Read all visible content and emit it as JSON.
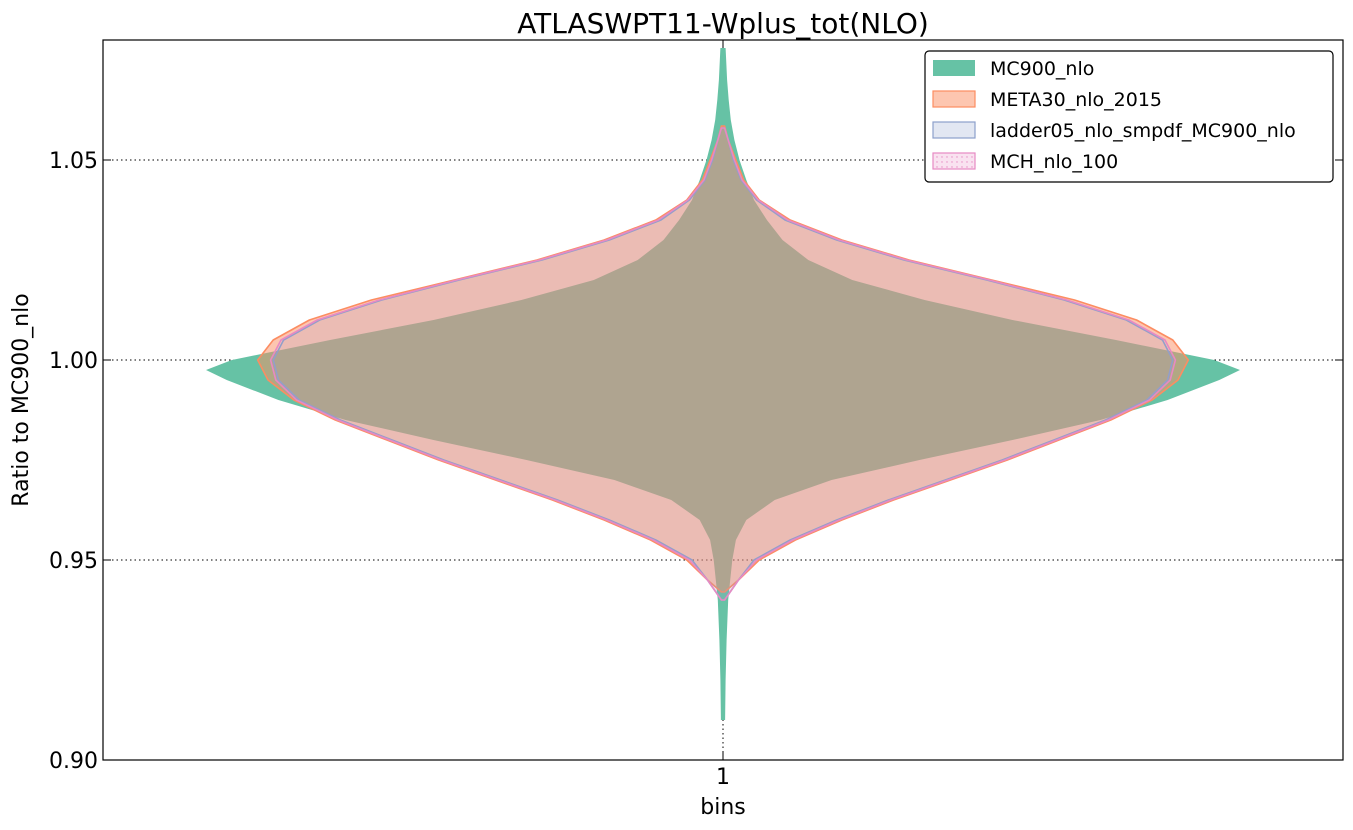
{
  "chart_data": {
    "type": "violin",
    "title": "ATLASWPT11-Wplus_tot(NLO)",
    "xlabel": "bins",
    "ylabel": "Ratio to MC900_nlo",
    "categories": [
      "1"
    ],
    "ylim": [
      0.9,
      1.08
    ],
    "yticks": [
      "0.90",
      "0.95",
      "1.00",
      "1.05"
    ],
    "grid": true,
    "legend_position": "top-right",
    "series": [
      {
        "name": "MC900_nlo",
        "color": "#66c2a5",
        "style": "filled",
        "profile": [
          [
            0.91,
            0.004
          ],
          [
            0.92,
            0.005
          ],
          [
            0.93,
            0.007
          ],
          [
            0.94,
            0.01
          ],
          [
            0.945,
            0.014
          ],
          [
            0.95,
            0.018
          ],
          [
            0.955,
            0.025
          ],
          [
            0.96,
            0.045
          ],
          [
            0.965,
            0.1
          ],
          [
            0.97,
            0.21
          ],
          [
            0.975,
            0.38
          ],
          [
            0.98,
            0.56
          ],
          [
            0.985,
            0.73
          ],
          [
            0.99,
            0.86
          ],
          [
            0.995,
            0.96
          ],
          [
            0.9975,
            1.0
          ],
          [
            1.0,
            0.95
          ],
          [
            1.005,
            0.76
          ],
          [
            1.01,
            0.56
          ],
          [
            1.015,
            0.39
          ],
          [
            1.02,
            0.25
          ],
          [
            1.025,
            0.165
          ],
          [
            1.03,
            0.115
          ],
          [
            1.035,
            0.085
          ],
          [
            1.04,
            0.06
          ],
          [
            1.045,
            0.045
          ],
          [
            1.05,
            0.032
          ],
          [
            1.055,
            0.022
          ],
          [
            1.06,
            0.015
          ],
          [
            1.065,
            0.011
          ],
          [
            1.07,
            0.008
          ],
          [
            1.078,
            0.005
          ]
        ]
      },
      {
        "name": "META30_nlo_2015",
        "color": "#fc8d62",
        "style": "filled-light",
        "profile": [
          [
            0.942,
            0.003
          ],
          [
            0.945,
            0.03
          ],
          [
            0.95,
            0.07
          ],
          [
            0.955,
            0.14
          ],
          [
            0.96,
            0.23
          ],
          [
            0.965,
            0.33
          ],
          [
            0.97,
            0.44
          ],
          [
            0.975,
            0.55
          ],
          [
            0.98,
            0.65
          ],
          [
            0.985,
            0.75
          ],
          [
            0.99,
            0.83
          ],
          [
            0.995,
            0.88
          ],
          [
            1.0,
            0.9
          ],
          [
            1.005,
            0.87
          ],
          [
            1.01,
            0.8
          ],
          [
            1.015,
            0.68
          ],
          [
            1.02,
            0.52
          ],
          [
            1.025,
            0.36
          ],
          [
            1.03,
            0.23
          ],
          [
            1.035,
            0.13
          ],
          [
            1.04,
            0.07
          ],
          [
            1.045,
            0.04
          ],
          [
            1.05,
            0.025
          ],
          [
            1.055,
            0.01
          ],
          [
            1.0585,
            0.003
          ]
        ]
      },
      {
        "name": "ladder05_nlo_smpdf_MC900_nlo",
        "color": "#8da0cb",
        "style": "outline",
        "profile": [
          [
            0.94,
            0.003
          ],
          [
            0.945,
            0.03
          ],
          [
            0.95,
            0.06
          ],
          [
            0.955,
            0.13
          ],
          [
            0.96,
            0.22
          ],
          [
            0.965,
            0.32
          ],
          [
            0.97,
            0.43
          ],
          [
            0.975,
            0.54
          ],
          [
            0.98,
            0.64
          ],
          [
            0.985,
            0.74
          ],
          [
            0.99,
            0.82
          ],
          [
            0.995,
            0.86
          ],
          [
            1.0,
            0.87
          ],
          [
            1.005,
            0.85
          ],
          [
            1.01,
            0.78
          ],
          [
            1.015,
            0.66
          ],
          [
            1.02,
            0.51
          ],
          [
            1.025,
            0.35
          ],
          [
            1.03,
            0.22
          ],
          [
            1.035,
            0.12
          ],
          [
            1.04,
            0.065
          ],
          [
            1.045,
            0.035
          ],
          [
            1.05,
            0.02
          ],
          [
            1.055,
            0.01
          ],
          [
            1.058,
            0.003
          ]
        ]
      },
      {
        "name": "MCH_nlo_100",
        "color": "#e78ac3",
        "style": "outline-dotted",
        "profile": [
          [
            0.94,
            0.003
          ],
          [
            0.945,
            0.03
          ],
          [
            0.95,
            0.065
          ],
          [
            0.955,
            0.135
          ],
          [
            0.96,
            0.225
          ],
          [
            0.965,
            0.325
          ],
          [
            0.97,
            0.435
          ],
          [
            0.975,
            0.545
          ],
          [
            0.98,
            0.645
          ],
          [
            0.985,
            0.745
          ],
          [
            0.99,
            0.825
          ],
          [
            0.995,
            0.865
          ],
          [
            1.0,
            0.875
          ],
          [
            1.005,
            0.855
          ],
          [
            1.01,
            0.785
          ],
          [
            1.015,
            0.665
          ],
          [
            1.02,
            0.515
          ],
          [
            1.025,
            0.355
          ],
          [
            1.03,
            0.225
          ],
          [
            1.035,
            0.125
          ],
          [
            1.04,
            0.068
          ],
          [
            1.045,
            0.037
          ],
          [
            1.05,
            0.022
          ],
          [
            1.055,
            0.01
          ],
          [
            1.058,
            0.003
          ]
        ]
      }
    ]
  }
}
